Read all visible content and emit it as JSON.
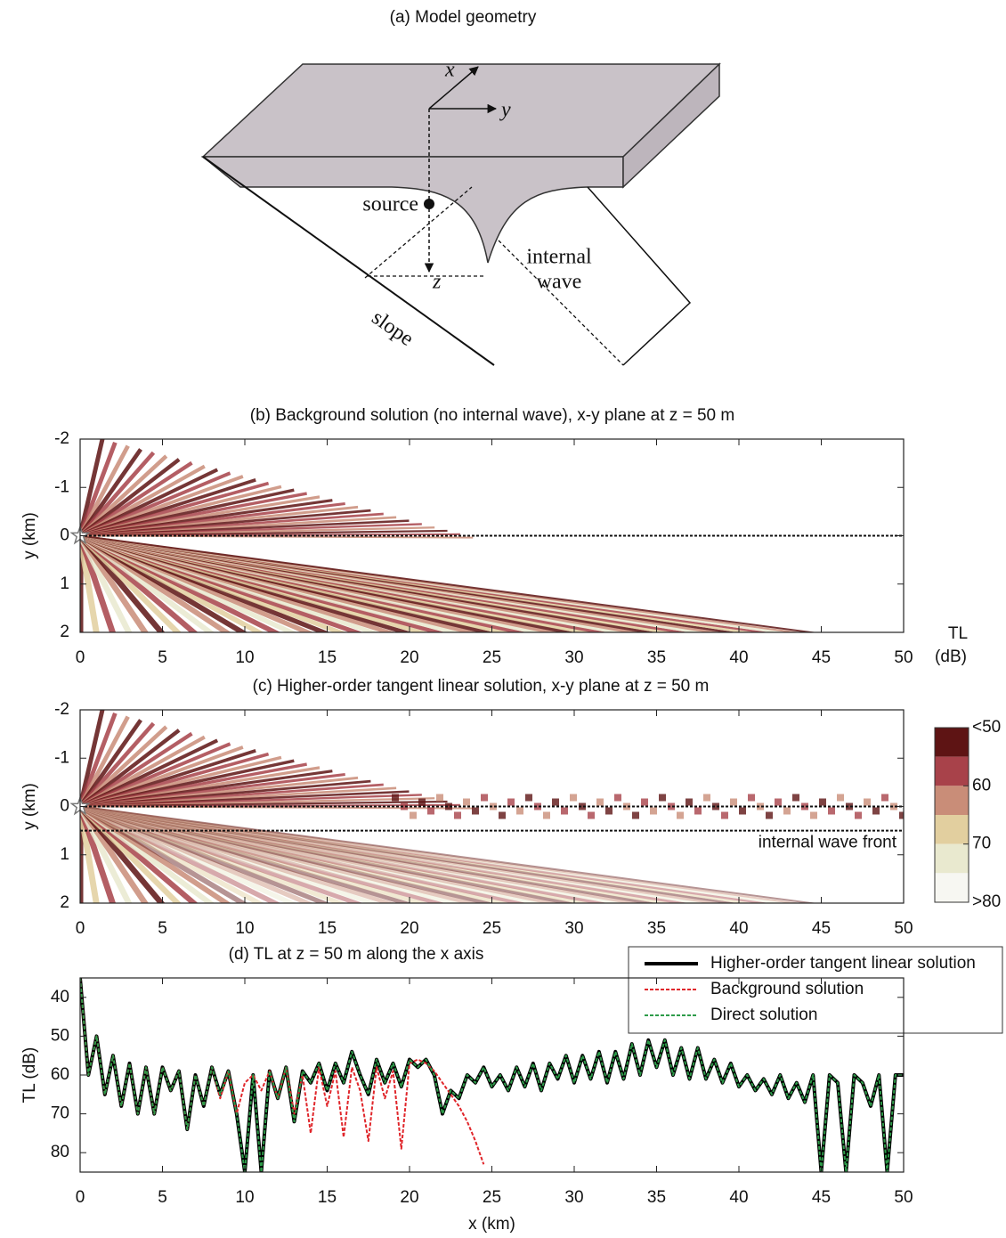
{
  "diagram": {
    "title": "(a) Model geometry",
    "labels": {
      "x": "x",
      "y": "y",
      "z": "z",
      "source": "source",
      "internal": "internal",
      "wave": "wave",
      "slope": "slope"
    }
  },
  "chart_data": [
    {
      "type": "heatmap",
      "title": "(b) Background solution (no internal wave),  x-y plane at z = 50 m",
      "ylabel": "y (km)",
      "xlim": [
        0,
        50
      ],
      "xticks": [
        0,
        5,
        10,
        15,
        20,
        25,
        30,
        35,
        40,
        45,
        50
      ],
      "ylim": [
        -2,
        2
      ],
      "yticks": [
        -2,
        -1,
        0,
        1,
        2
      ],
      "y_inverted": true,
      "source": {
        "x": 0,
        "y": 0
      },
      "lines_y": [
        0
      ]
    },
    {
      "type": "heatmap",
      "title": "(c) Higher-order tangent linear solution,  x-y plane at z = 50 m",
      "ylabel": "y (km)",
      "xlim": [
        0,
        50
      ],
      "xticks": [
        0,
        5,
        10,
        15,
        20,
        25,
        30,
        35,
        40,
        45,
        50
      ],
      "ylim": [
        -2,
        2
      ],
      "yticks": [
        -2,
        -1,
        0,
        1,
        2
      ],
      "y_inverted": true,
      "source": {
        "x": 0,
        "y": 0
      },
      "lines_y": [
        0,
        0.5
      ],
      "annotation": "internal wave front",
      "colorbar": {
        "title": "TL",
        "unit": "(dB)",
        "levels": [
          50,
          55,
          60,
          65,
          70,
          75,
          80
        ],
        "colors": [
          "#5e1414",
          "#a8424a",
          "#c98d78",
          "#e2cf9f",
          "#e9e9cf",
          "#f7f7f2"
        ],
        "ticks": [
          {
            "value": 50,
            "label": "<50"
          },
          60,
          70,
          {
            "value": 80,
            "label": ">80"
          }
        ]
      }
    },
    {
      "type": "line",
      "title": "(d) TL at z = 50 m along the x axis",
      "xlabel": "x (km)",
      "ylabel": "TL (dB)",
      "xlim": [
        0,
        50
      ],
      "xticks": [
        0,
        5,
        10,
        15,
        20,
        25,
        30,
        35,
        40,
        45,
        50
      ],
      "ylim": [
        35,
        85
      ],
      "yticks": [
        40,
        50,
        60,
        70,
        80
      ],
      "y_inverted": true,
      "legend": "upper right",
      "x": [
        0,
        0.5,
        1,
        1.5,
        2,
        2.5,
        3,
        3.5,
        4,
        4.5,
        5,
        5.5,
        6,
        6.5,
        7,
        7.5,
        8,
        8.5,
        9,
        9.5,
        10,
        10.5,
        11,
        11.5,
        12,
        12.5,
        13,
        13.5,
        14,
        14.5,
        15,
        15.5,
        16,
        16.5,
        17,
        17.5,
        18,
        18.5,
        19,
        19.5,
        20,
        20.5,
        21,
        21.5,
        22,
        22.5,
        23,
        23.5,
        24,
        24.5,
        25,
        25.5,
        26,
        26.5,
        27,
        27.5,
        28,
        28.5,
        29,
        29.5,
        30,
        30.5,
        31,
        31.5,
        32,
        32.5,
        33,
        33.5,
        34,
        34.5,
        35,
        35.5,
        36,
        36.5,
        37,
        37.5,
        38,
        38.5,
        39,
        39.5,
        40,
        40.5,
        41,
        41.5,
        42,
        42.5,
        43,
        43.5,
        44,
        44.5,
        45,
        45.5,
        46,
        46.5,
        47,
        47.5,
        48,
        48.5,
        49,
        49.5,
        50
      ],
      "series": [
        {
          "name": "Higher-order tangent linear solution",
          "color": "#000000",
          "linestyle": "solid",
          "values": [
            35,
            60,
            50,
            65,
            55,
            68,
            57,
            70,
            58,
            70,
            58,
            64,
            59,
            74,
            60,
            68,
            58,
            65,
            59,
            70,
            85,
            60,
            85,
            59,
            66,
            58,
            72,
            59,
            62,
            57,
            64,
            57,
            62,
            54,
            60,
            65,
            56,
            62,
            57,
            63,
            56,
            58,
            56,
            60,
            70,
            64,
            66,
            60,
            62,
            58,
            63,
            60,
            64,
            58,
            63,
            57,
            64,
            57,
            61,
            55,
            62,
            55,
            61,
            54,
            62,
            54,
            61,
            52,
            60,
            51,
            58,
            51,
            60,
            53,
            61,
            53,
            61,
            56,
            62,
            57,
            63,
            60,
            64,
            61,
            65,
            60,
            66,
            62,
            67,
            60,
            85,
            60,
            62,
            85,
            60,
            62,
            68,
            60,
            85,
            60,
            60
          ]
        },
        {
          "name": "Background solution",
          "color": "#e0262b",
          "linestyle": "dashed",
          "values": [
            35,
            60,
            50,
            65,
            55,
            68,
            57,
            70,
            58,
            70,
            58,
            64,
            59,
            74,
            60,
            68,
            58,
            66,
            59,
            70,
            62,
            60,
            64,
            59,
            66,
            58,
            70,
            60,
            75,
            58,
            68,
            59,
            76,
            58,
            64,
            77,
            58,
            66,
            59,
            79,
            57,
            56,
            57,
            59,
            62,
            65,
            68,
            72,
            77,
            83,
            null,
            null,
            null,
            null,
            null,
            null,
            null,
            null,
            null,
            null,
            null,
            null,
            null,
            null,
            null,
            null,
            null,
            null,
            null,
            null,
            null,
            null,
            null,
            null,
            null,
            null,
            null,
            null,
            null,
            null,
            null,
            null,
            null,
            null,
            null,
            null,
            null,
            null,
            null,
            null,
            null,
            null,
            null,
            null,
            null,
            null,
            null,
            null,
            null,
            null,
            null
          ]
        },
        {
          "name": "Direct solution",
          "color": "#2e9c4a",
          "linestyle": "dashed",
          "values": [
            35,
            60,
            50,
            65,
            55,
            68,
            57,
            70,
            58,
            70,
            58,
            64,
            59,
            74,
            60,
            68,
            58,
            65,
            59,
            70,
            85,
            60,
            85,
            59,
            66,
            58,
            72,
            59,
            62,
            57,
            64,
            57,
            62,
            54,
            60,
            65,
            56,
            62,
            57,
            63,
            56,
            58,
            56,
            60,
            70,
            64,
            66,
            60,
            62,
            58,
            63,
            60,
            64,
            58,
            63,
            57,
            64,
            57,
            61,
            55,
            62,
            55,
            61,
            54,
            62,
            54,
            61,
            52,
            60,
            51,
            58,
            51,
            60,
            53,
            61,
            53,
            61,
            56,
            62,
            57,
            63,
            60,
            64,
            61,
            65,
            60,
            66,
            62,
            67,
            60,
            85,
            60,
            62,
            85,
            60,
            62,
            68,
            60,
            85,
            60,
            60
          ]
        }
      ]
    }
  ]
}
